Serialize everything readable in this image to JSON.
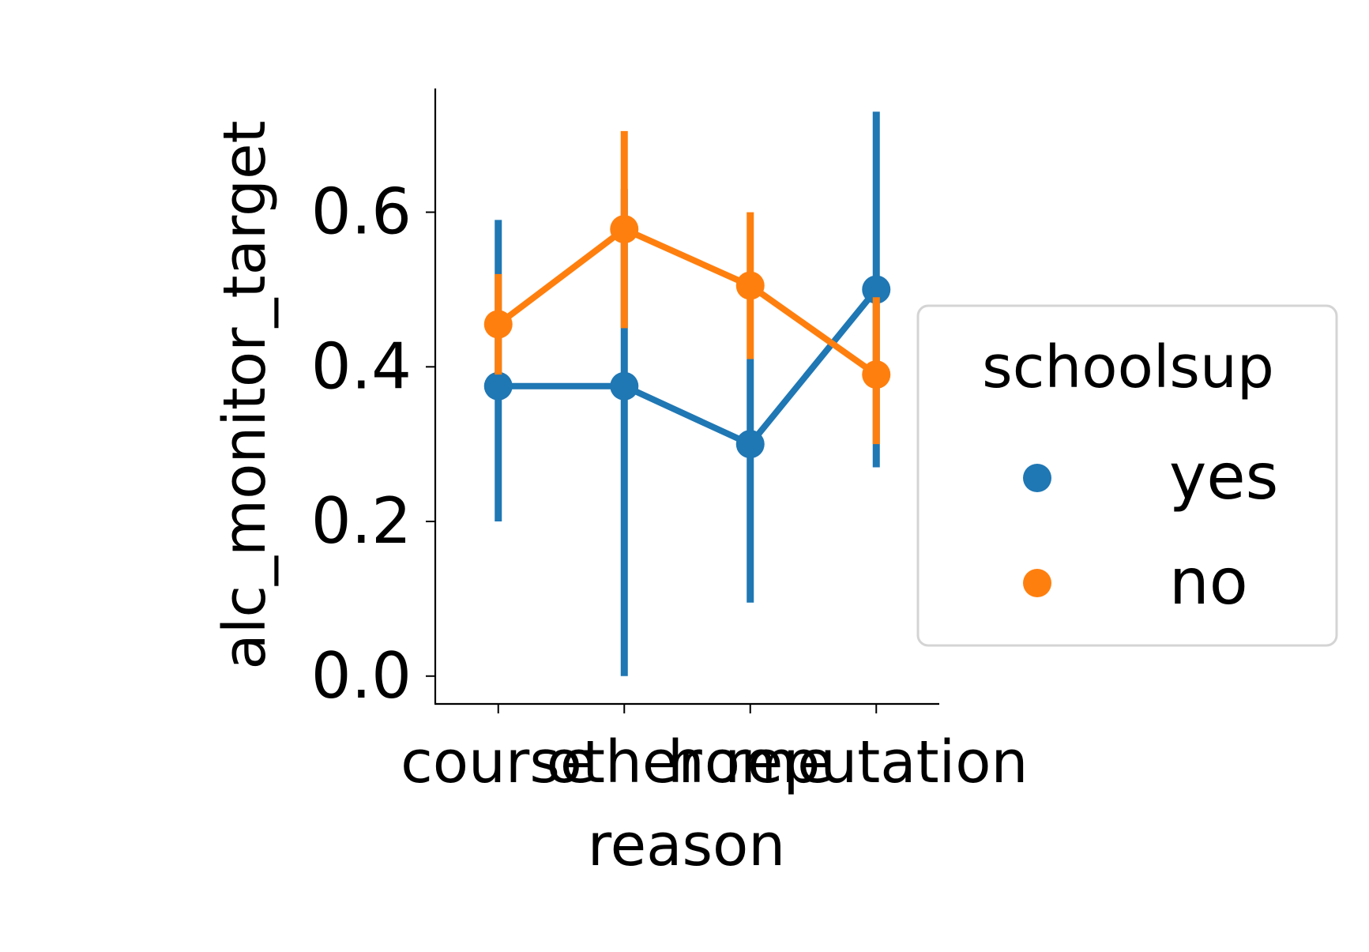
{
  "chart_data": {
    "type": "line",
    "xlabel": "reason",
    "ylabel": "alc_monitor_target",
    "categories": [
      "course",
      "other",
      "home",
      "reputation"
    ],
    "ylim": [
      -0.036,
      0.76
    ],
    "yticks": [
      "0.0",
      "0.2",
      "0.4",
      "0.6"
    ],
    "grid": false,
    "legend": {
      "title": "schoolsup",
      "placement": "right"
    },
    "series": [
      {
        "name": "yes",
        "color": "#1f77b4",
        "values": [
          0.375,
          0.375,
          0.3,
          0.5
        ],
        "ci_low": [
          0.2,
          0.0,
          0.095,
          0.27
        ],
        "ci_high": [
          0.59,
          0.63,
          0.41,
          0.73
        ]
      },
      {
        "name": "no",
        "color": "#ff7f0e",
        "values": [
          0.455,
          0.578,
          0.505,
          0.39
        ],
        "ci_low": [
          0.39,
          0.45,
          0.41,
          0.3
        ],
        "ci_high": [
          0.52,
          0.705,
          0.6,
          0.49
        ]
      }
    ]
  }
}
